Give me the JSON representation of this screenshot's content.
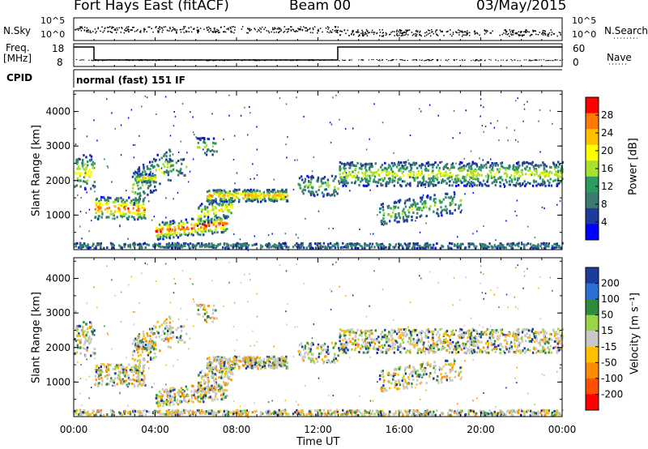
{
  "header": {
    "station": "Fort Hays East (fitACF)",
    "beam": "Beam 00",
    "date": "03/May/2015"
  },
  "panels": {
    "nsky_label": "N.Sky",
    "nsearch_label": "N.Search",
    "freq_label_1": "Freq.",
    "freq_label_2": "[MHz]",
    "nave_label": "Nave",
    "cpid_label": "CPID",
    "cpid_text": "normal (fast) 151 IF",
    "noise_ticks_left": [
      "10^5",
      "10^0"
    ],
    "noise_ticks_right": [
      "10^5",
      "10^0"
    ],
    "freq_ticks": [
      "18",
      "8"
    ],
    "nave_ticks": [
      "60",
      "0"
    ]
  },
  "power_colorbar": {
    "label": "Power [dB]",
    "ticks": [
      "28",
      "24",
      "20",
      "16",
      "12",
      "8",
      "4"
    ],
    "colors": [
      "#ff0000",
      "#ff7a00",
      "#ffc000",
      "#ffff00",
      "#a8e030",
      "#2e9a60",
      "#3a7a70",
      "#1e3a9a",
      "#0000ff"
    ]
  },
  "velocity_colorbar": {
    "label": "Velocity [m s⁻¹]",
    "ticks": [
      "200",
      "100",
      "50",
      "15",
      "-15",
      "-50",
      "-100",
      "-200"
    ],
    "colors": [
      "#1e3a9a",
      "#2b6fd6",
      "#2e8b3c",
      "#9bd34a",
      "#c8c8c8",
      "#ffc000",
      "#ff8c00",
      "#ff5000",
      "#ff0000"
    ]
  },
  "chart_data": [
    {
      "type": "heatmap",
      "name": "power",
      "ylabel": "Slant Range [km]",
      "xlabel": "Time UT",
      "ylim": [
        0,
        4600
      ],
      "y_ticks": [
        "1000",
        "2000",
        "3000",
        "4000"
      ],
      "x_ticks": [
        "00:00",
        "04:00",
        "08:00",
        "12:00",
        "16:00",
        "20:00",
        "00:00"
      ]
    },
    {
      "type": "heatmap",
      "name": "velocity",
      "ylabel": "Slant Range [km]",
      "xlabel": "Time UT",
      "ylim": [
        0,
        4600
      ],
      "y_ticks": [
        "1000",
        "2000",
        "3000",
        "4000"
      ],
      "x_ticks": [
        "00:00",
        "04:00",
        "08:00",
        "12:00",
        "16:00",
        "20:00",
        "00:00"
      ]
    }
  ]
}
